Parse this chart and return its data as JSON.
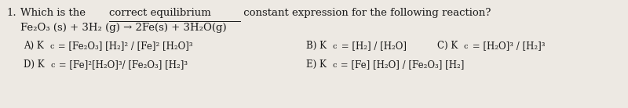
{
  "background_color": "#ede9e3",
  "figsize": [
    8.0,
    1.38
  ],
  "dpi": 100,
  "question_number": "1.",
  "font_size_question": 9.5,
  "font_size_reaction": 9.5,
  "font_size_options": 8.5,
  "text_color": "#1a1a1a",
  "reaction": "Fe₂O₃ (s) + 3H₂ (g) → 2Fe(s) + 3H₂O(g)",
  "q_line1_normal1": "Which is the ",
  "q_line1_underline": "correct equilibrium",
  "q_line1_normal2": " constant expression for the following reaction?",
  "opt_A_label": "A) K",
  "opt_A_sub": "c",
  "opt_A_text": " = [Fe₂O₃] [H₂]² / [Fe]² [H₂O]³",
  "opt_D_label": "D) K",
  "opt_D_sub": "c",
  "opt_D_text": " = [Fe]²[H₂O]³/ [Fe₂O₃] [H₂]³",
  "opt_B_label": "B) K",
  "opt_B_sub": "c",
  "opt_B_text": " = [H₂] / [H₂O]",
  "opt_C_label": "C) K",
  "opt_C_sub": "c",
  "opt_C_text": " = [H₂O]³ / [H₂]³",
  "opt_E_label": "E) K",
  "opt_E_sub": "c",
  "opt_E_text": " = [Fe] [H₂O] / [Fe₂O₃] [H₂]"
}
